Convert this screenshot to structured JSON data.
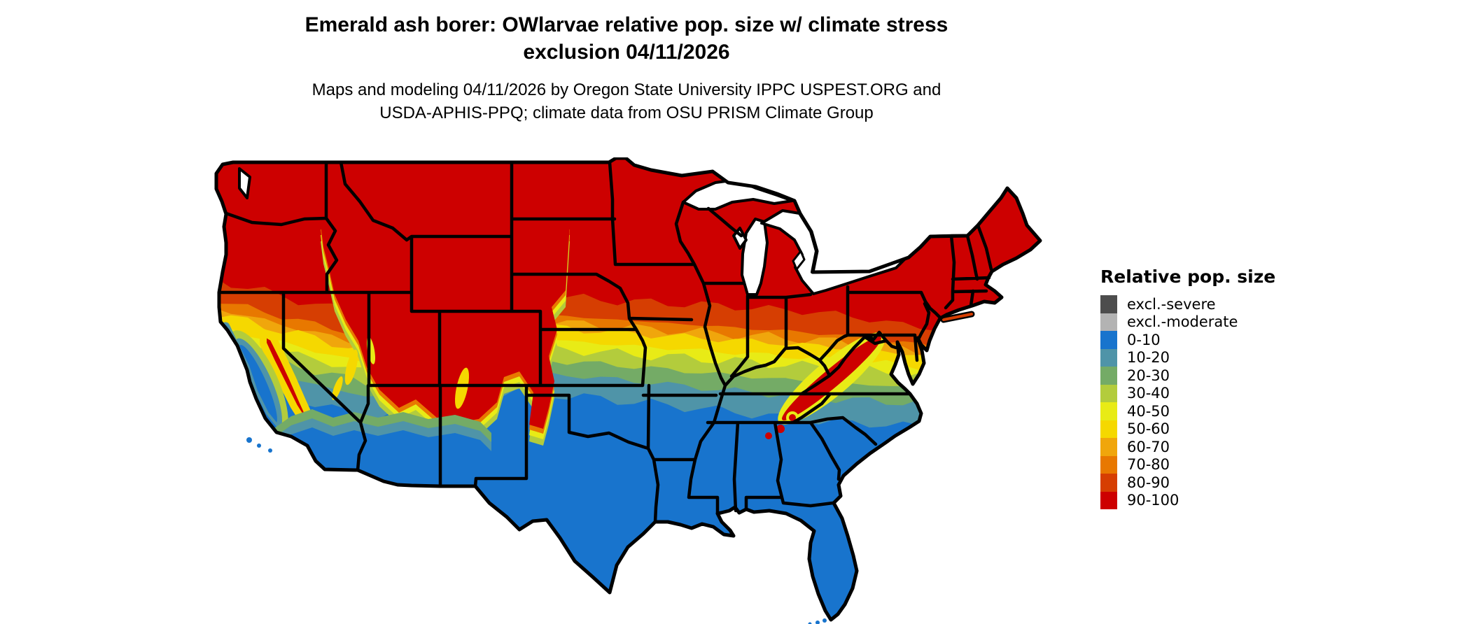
{
  "title": {
    "line1": "Emerald ash borer: OWlarvae relative pop. size w/ climate stress",
    "line2": "exclusion 04/11/2026"
  },
  "subtitle": {
    "line1": "Maps and modeling 04/11/2026 by Oregon State University IPPC USPEST.ORG and",
    "line2": "USDA-APHIS-PPQ; climate data from OSU PRISM Climate Group"
  },
  "legend": {
    "title": "Relative pop. size",
    "items": [
      {
        "label": "excl.-severe",
        "color": "#4d4d4d"
      },
      {
        "label": "excl.-moderate",
        "color": "#b3b3b3"
      },
      {
        "label": "0-10",
        "color": "#1874cd"
      },
      {
        "label": "10-20",
        "color": "#4f94a8"
      },
      {
        "label": "20-30",
        "color": "#74ab66"
      },
      {
        "label": "30-40",
        "color": "#b3cc3c"
      },
      {
        "label": "40-50",
        "color": "#e8eb16"
      },
      {
        "label": "50-60",
        "color": "#f5d800"
      },
      {
        "label": "60-70",
        "color": "#f0a60c"
      },
      {
        "label": "70-80",
        "color": "#e87800"
      },
      {
        "label": "80-90",
        "color": "#d63e02"
      },
      {
        "label": "90-100",
        "color": "#cd0000"
      }
    ]
  },
  "chart_data": {
    "type": "heatmap",
    "title": "Emerald ash borer: OWlarvae relative pop. size w/ climate stress exclusion 04/11/2026",
    "legend_title": "Relative pop. size",
    "region": "Conterminous United States",
    "categories": [
      "excl.-severe",
      "excl.-moderate",
      "0-10",
      "10-20",
      "20-30",
      "30-40",
      "40-50",
      "50-60",
      "60-70",
      "70-80",
      "80-90",
      "90-100"
    ],
    "colors": [
      "#4d4d4d",
      "#b3b3b3",
      "#1874cd",
      "#4f94a8",
      "#74ab66",
      "#b3cc3c",
      "#e8eb16",
      "#f5d800",
      "#f0a60c",
      "#e87800",
      "#d63e02",
      "#cd0000"
    ],
    "pattern_summary": "Northern tier of states solid 90-100 (red); latitudinal bands step down through orange, yellow and green across the central U.S.; southern states (TX, LA, MS, AL, GA, FL, southern CA/AZ deserts, CA Central Valley) 0-10 (blue); high mountains of the West and southern Appalachians remain 90-100 (red) with yellow fringes."
  }
}
